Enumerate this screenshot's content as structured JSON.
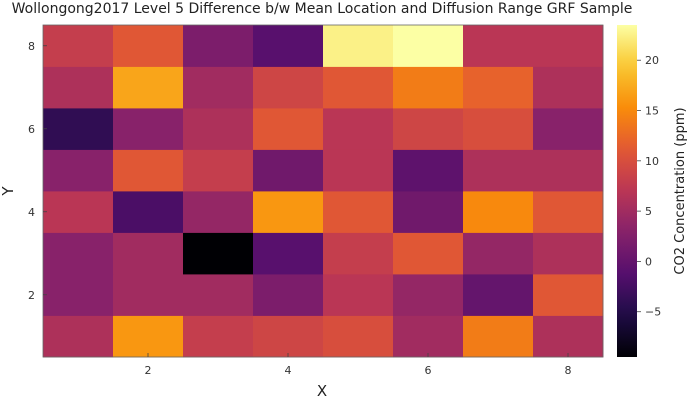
{
  "chart_data": {
    "type": "heatmap",
    "title": "Wollongong2017 Level 5 Difference b/w Mean Location and Diffusion Range GRF Sample",
    "xlabel": "X",
    "ylabel": "Y",
    "colorbar_label": "CO2 Concentration (ppm)",
    "colormap": "inferno",
    "clim": [
      -9.5,
      23.5
    ],
    "xlim": [
      0.5,
      8.5
    ],
    "ylim": [
      0.5,
      8.5
    ],
    "x": [
      1,
      2,
      3,
      4,
      5,
      6,
      7,
      8
    ],
    "y": [
      1,
      2,
      3,
      4,
      5,
      6,
      7,
      8
    ],
    "x_ticks": [
      2,
      4,
      6,
      8
    ],
    "y_ticks": [
      2,
      4,
      6,
      8
    ],
    "colorbar_ticks": [
      -5,
      0,
      5,
      10,
      15,
      20
    ],
    "colorbar_tick_labels": [
      "−5",
      "0",
      "5",
      "10",
      "15",
      "20"
    ],
    "grid": false,
    "z": [
      [
        6,
        16,
        8,
        9,
        10,
        5,
        14,
        6
      ],
      [
        3,
        5,
        5,
        2,
        7,
        4,
        0,
        11
      ],
      [
        3,
        5,
        -9.5,
        -1,
        8,
        11,
        4,
        6
      ],
      [
        7,
        -2,
        4,
        16,
        11,
        1,
        15,
        11
      ],
      [
        3,
        11,
        8,
        1,
        7,
        -0.5,
        6,
        6
      ],
      [
        -4,
        3,
        6,
        11,
        7,
        9,
        10,
        3
      ],
      [
        6,
        17,
        5,
        9,
        11,
        14,
        12,
        6
      ],
      [
        8,
        11,
        2,
        -1,
        22.5,
        23.5,
        7,
        7
      ]
    ]
  }
}
